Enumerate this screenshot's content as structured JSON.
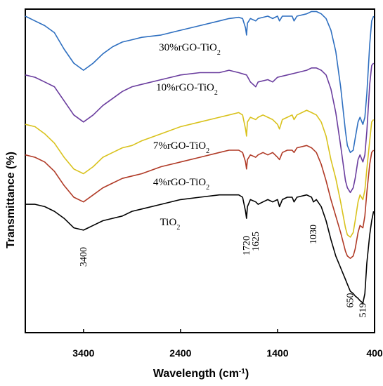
{
  "chart_data": {
    "type": "line",
    "xlabel_main": "Wavelength (cm",
    "xlabel_sup": "-1",
    "xlabel_end": ")",
    "ylabel": "Transmittance  (%)",
    "xlim": [
      4000,
      400
    ],
    "x_reversed": true,
    "xticks": [
      "3400",
      "2400",
      "1400",
      "400"
    ],
    "xtick_values": [
      3400,
      2400,
      1400,
      400
    ],
    "yticks": [],
    "grid": false,
    "series": [
      {
        "name": "30%rGO-TiO",
        "name_sub": "2",
        "color": "#2e6fc0",
        "points": [
          [
            4000,
            0.03
          ],
          [
            3900,
            0.05
          ],
          [
            3800,
            0.07
          ],
          [
            3700,
            0.1
          ],
          [
            3600,
            0.17
          ],
          [
            3500,
            0.23
          ],
          [
            3400,
            0.26
          ],
          [
            3300,
            0.23
          ],
          [
            3200,
            0.19
          ],
          [
            3100,
            0.16
          ],
          [
            3000,
            0.14
          ],
          [
            2900,
            0.13
          ],
          [
            2800,
            0.12
          ],
          [
            2600,
            0.11
          ],
          [
            2400,
            0.09
          ],
          [
            2200,
            0.07
          ],
          [
            2000,
            0.05
          ],
          [
            1900,
            0.04
          ],
          [
            1800,
            0.035
          ],
          [
            1760,
            0.04
          ],
          [
            1730,
            0.08
          ],
          [
            1720,
            0.11
          ],
          [
            1710,
            0.06
          ],
          [
            1680,
            0.04
          ],
          [
            1625,
            0.05
          ],
          [
            1600,
            0.04
          ],
          [
            1500,
            0.03
          ],
          [
            1450,
            0.04
          ],
          [
            1400,
            0.03
          ],
          [
            1380,
            0.05
          ],
          [
            1350,
            0.03
          ],
          [
            1250,
            0.03
          ],
          [
            1230,
            0.05
          ],
          [
            1200,
            0.03
          ],
          [
            1100,
            0.02
          ],
          [
            1050,
            0.01
          ],
          [
            1000,
            0.01
          ],
          [
            950,
            0.02
          ],
          [
            900,
            0.04
          ],
          [
            850,
            0.09
          ],
          [
            800,
            0.18
          ],
          [
            750,
            0.33
          ],
          [
            700,
            0.52
          ],
          [
            680,
            0.58
          ],
          [
            650,
            0.61
          ],
          [
            620,
            0.6
          ],
          [
            600,
            0.55
          ],
          [
            570,
            0.48
          ],
          [
            550,
            0.46
          ],
          [
            520,
            0.49
          ],
          [
            500,
            0.46
          ],
          [
            480,
            0.36
          ],
          [
            450,
            0.15
          ],
          [
            430,
            0.05
          ],
          [
            410,
            0.03
          ]
        ]
      },
      {
        "name": "10%rGO-TiO",
        "name_sub": "2",
        "color": "#6a3d9e",
        "points": [
          [
            4000,
            0.28
          ],
          [
            3900,
            0.29
          ],
          [
            3800,
            0.31
          ],
          [
            3700,
            0.33
          ],
          [
            3600,
            0.39
          ],
          [
            3500,
            0.45
          ],
          [
            3400,
            0.48
          ],
          [
            3300,
            0.45
          ],
          [
            3200,
            0.41
          ],
          [
            3100,
            0.38
          ],
          [
            3000,
            0.35
          ],
          [
            2900,
            0.33
          ],
          [
            2800,
            0.32
          ],
          [
            2600,
            0.3
          ],
          [
            2400,
            0.28
          ],
          [
            2200,
            0.27
          ],
          [
            2000,
            0.27
          ],
          [
            1900,
            0.26
          ],
          [
            1800,
            0.27
          ],
          [
            1720,
            0.28
          ],
          [
            1680,
            0.31
          ],
          [
            1625,
            0.33
          ],
          [
            1600,
            0.31
          ],
          [
            1500,
            0.3
          ],
          [
            1450,
            0.31
          ],
          [
            1400,
            0.29
          ],
          [
            1300,
            0.28
          ],
          [
            1200,
            0.27
          ],
          [
            1100,
            0.26
          ],
          [
            1050,
            0.25
          ],
          [
            1000,
            0.25
          ],
          [
            950,
            0.26
          ],
          [
            900,
            0.28
          ],
          [
            850,
            0.34
          ],
          [
            800,
            0.44
          ],
          [
            750,
            0.58
          ],
          [
            700,
            0.73
          ],
          [
            680,
            0.76
          ],
          [
            650,
            0.78
          ],
          [
            620,
            0.76
          ],
          [
            600,
            0.72
          ],
          [
            570,
            0.64
          ],
          [
            550,
            0.62
          ],
          [
            520,
            0.65
          ],
          [
            500,
            0.62
          ],
          [
            480,
            0.52
          ],
          [
            450,
            0.32
          ],
          [
            430,
            0.24
          ],
          [
            410,
            0.23
          ]
        ]
      },
      {
        "name": "7%rGO-TiO",
        "name_sub": "2",
        "color": "#d9c21c",
        "points": [
          [
            4000,
            0.49
          ],
          [
            3900,
            0.5
          ],
          [
            3800,
            0.53
          ],
          [
            3700,
            0.57
          ],
          [
            3600,
            0.63
          ],
          [
            3500,
            0.68
          ],
          [
            3400,
            0.7
          ],
          [
            3300,
            0.67
          ],
          [
            3200,
            0.63
          ],
          [
            3100,
            0.61
          ],
          [
            3000,
            0.59
          ],
          [
            2900,
            0.58
          ],
          [
            2800,
            0.56
          ],
          [
            2600,
            0.53
          ],
          [
            2400,
            0.5
          ],
          [
            2200,
            0.48
          ],
          [
            2000,
            0.46
          ],
          [
            1900,
            0.45
          ],
          [
            1800,
            0.44
          ],
          [
            1760,
            0.45
          ],
          [
            1730,
            0.51
          ],
          [
            1720,
            0.54
          ],
          [
            1710,
            0.48
          ],
          [
            1680,
            0.46
          ],
          [
            1625,
            0.47
          ],
          [
            1600,
            0.46
          ],
          [
            1550,
            0.45
          ],
          [
            1500,
            0.46
          ],
          [
            1450,
            0.47
          ],
          [
            1400,
            0.49
          ],
          [
            1380,
            0.51
          ],
          [
            1350,
            0.47
          ],
          [
            1300,
            0.46
          ],
          [
            1250,
            0.45
          ],
          [
            1230,
            0.47
          ],
          [
            1200,
            0.45
          ],
          [
            1100,
            0.43
          ],
          [
            1050,
            0.44
          ],
          [
            1000,
            0.45
          ],
          [
            950,
            0.48
          ],
          [
            900,
            0.54
          ],
          [
            850,
            0.64
          ],
          [
            800,
            0.72
          ],
          [
            750,
            0.82
          ],
          [
            700,
            0.93
          ],
          [
            680,
            0.96
          ],
          [
            650,
            0.97
          ],
          [
            620,
            0.95
          ],
          [
            600,
            0.9
          ],
          [
            570,
            0.82
          ],
          [
            550,
            0.79
          ],
          [
            520,
            0.81
          ],
          [
            500,
            0.77
          ],
          [
            480,
            0.68
          ],
          [
            450,
            0.56
          ],
          [
            430,
            0.48
          ],
          [
            410,
            0.47
          ]
        ]
      },
      {
        "name": "4%rGO-TiO",
        "name_sub": "2",
        "color": "#b03a26",
        "points": [
          [
            4000,
            0.62
          ],
          [
            3900,
            0.63
          ],
          [
            3800,
            0.65
          ],
          [
            3700,
            0.69
          ],
          [
            3600,
            0.75
          ],
          [
            3500,
            0.8
          ],
          [
            3400,
            0.82
          ],
          [
            3300,
            0.79
          ],
          [
            3200,
            0.76
          ],
          [
            3100,
            0.74
          ],
          [
            3000,
            0.72
          ],
          [
            2900,
            0.71
          ],
          [
            2800,
            0.7
          ],
          [
            2600,
            0.67
          ],
          [
            2400,
            0.65
          ],
          [
            2200,
            0.63
          ],
          [
            2000,
            0.61
          ],
          [
            1900,
            0.6
          ],
          [
            1800,
            0.6
          ],
          [
            1760,
            0.61
          ],
          [
            1730,
            0.65
          ],
          [
            1720,
            0.68
          ],
          [
            1710,
            0.64
          ],
          [
            1680,
            0.62
          ],
          [
            1625,
            0.63
          ],
          [
            1600,
            0.62
          ],
          [
            1550,
            0.61
          ],
          [
            1500,
            0.62
          ],
          [
            1450,
            0.61
          ],
          [
            1400,
            0.63
          ],
          [
            1380,
            0.64
          ],
          [
            1350,
            0.61
          ],
          [
            1300,
            0.6
          ],
          [
            1250,
            0.6
          ],
          [
            1230,
            0.61
          ],
          [
            1200,
            0.59
          ],
          [
            1100,
            0.58
          ],
          [
            1050,
            0.59
          ],
          [
            1000,
            0.61
          ],
          [
            950,
            0.66
          ],
          [
            900,
            0.73
          ],
          [
            850,
            0.81
          ],
          [
            800,
            0.88
          ],
          [
            750,
            0.95
          ],
          [
            700,
            1.03
          ],
          [
            680,
            1.05
          ],
          [
            650,
            1.06
          ],
          [
            620,
            1.05
          ],
          [
            600,
            1.02
          ],
          [
            570,
            0.95
          ],
          [
            550,
            0.92
          ],
          [
            520,
            0.93
          ],
          [
            500,
            0.88
          ],
          [
            480,
            0.78
          ],
          [
            450,
            0.66
          ],
          [
            430,
            0.61
          ],
          [
            410,
            0.6
          ]
        ]
      },
      {
        "name": "TiO",
        "name_sub": "2",
        "color": "#000000",
        "points": [
          [
            4000,
            0.83
          ],
          [
            3900,
            0.83
          ],
          [
            3800,
            0.84
          ],
          [
            3700,
            0.86
          ],
          [
            3600,
            0.89
          ],
          [
            3500,
            0.93
          ],
          [
            3400,
            0.94
          ],
          [
            3300,
            0.92
          ],
          [
            3200,
            0.9
          ],
          [
            3100,
            0.89
          ],
          [
            3000,
            0.88
          ],
          [
            2900,
            0.86
          ],
          [
            2800,
            0.85
          ],
          [
            2600,
            0.83
          ],
          [
            2400,
            0.81
          ],
          [
            2200,
            0.8
          ],
          [
            2000,
            0.79
          ],
          [
            1900,
            0.79
          ],
          [
            1800,
            0.79
          ],
          [
            1760,
            0.8
          ],
          [
            1730,
            0.86
          ],
          [
            1720,
            0.89
          ],
          [
            1710,
            0.84
          ],
          [
            1680,
            0.81
          ],
          [
            1625,
            0.82
          ],
          [
            1600,
            0.83
          ],
          [
            1550,
            0.82
          ],
          [
            1500,
            0.81
          ],
          [
            1450,
            0.82
          ],
          [
            1400,
            0.81
          ],
          [
            1380,
            0.84
          ],
          [
            1350,
            0.81
          ],
          [
            1300,
            0.8
          ],
          [
            1250,
            0.8
          ],
          [
            1230,
            0.82
          ],
          [
            1200,
            0.8
          ],
          [
            1100,
            0.79
          ],
          [
            1050,
            0.8
          ],
          [
            1030,
            0.82
          ],
          [
            1000,
            0.81
          ],
          [
            950,
            0.84
          ],
          [
            900,
            0.9
          ],
          [
            850,
            0.98
          ],
          [
            800,
            1.05
          ],
          [
            750,
            1.1
          ],
          [
            700,
            1.15
          ],
          [
            680,
            1.17
          ],
          [
            650,
            1.2
          ],
          [
            620,
            1.21
          ],
          [
            600,
            1.22
          ],
          [
            570,
            1.23
          ],
          [
            550,
            1.24
          ],
          [
            520,
            1.25
          ],
          [
            500,
            1.21
          ],
          [
            480,
            1.08
          ],
          [
            450,
            0.96
          ],
          [
            430,
            0.9
          ],
          [
            410,
            0.86
          ]
        ]
      }
    ],
    "peak_labels": [
      "3400",
      "1720",
      "1625",
      "1030",
      "650",
      "519"
    ],
    "peak_positions": [
      3400,
      1720,
      1625,
      1030,
      650,
      519
    ]
  }
}
